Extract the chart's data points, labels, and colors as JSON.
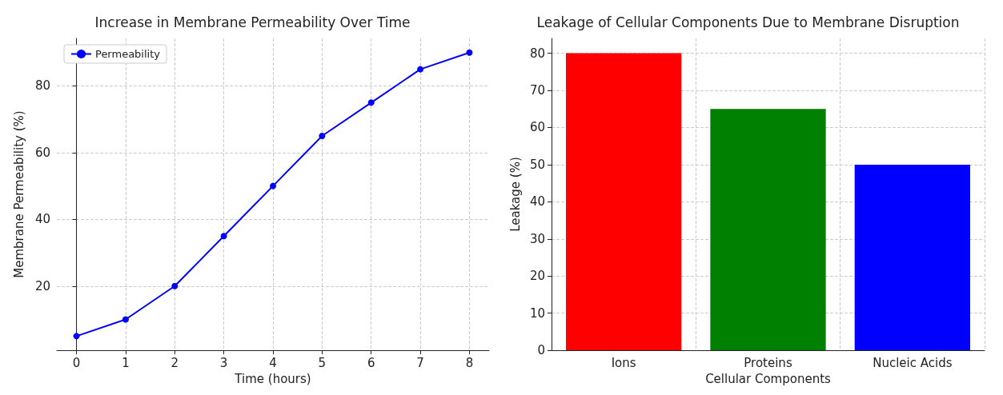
{
  "chart_data": [
    {
      "type": "line",
      "title": "Increase in Membrane Permeability Over Time",
      "xlabel": "Time (hours)",
      "ylabel": "Membrane Permeability (%)",
      "x": [
        0,
        1,
        2,
        3,
        4,
        5,
        6,
        7,
        8
      ],
      "series": [
        {
          "name": "Permeability",
          "color": "#0000ff",
          "values": [
            5,
            10,
            20,
            35,
            50,
            65,
            75,
            85,
            90
          ]
        }
      ],
      "xlim": [
        -0.4,
        8.4
      ],
      "xticks": [
        0,
        1,
        2,
        3,
        4,
        5,
        6,
        7,
        8
      ],
      "ylim": [
        0.75,
        94.25
      ],
      "yticks": [
        20,
        40,
        60,
        80
      ],
      "grid": true,
      "legend": "top left",
      "marker": "circle",
      "line_style": "solid"
    },
    {
      "type": "bar",
      "title": "Leakage of Cellular Components Due to Membrane Disruption",
      "xlabel": "Cellular Components",
      "ylabel": "Leakage (%)",
      "categories": [
        "Ions",
        "Proteins",
        "Nucleic Acids"
      ],
      "values": [
        80,
        65,
        50
      ],
      "colors": [
        "#ff0000",
        "#008000",
        "#0000ff"
      ],
      "ylim": [
        0,
        84
      ],
      "yticks": [
        0,
        10,
        20,
        30,
        40,
        50,
        60,
        70,
        80
      ],
      "grid": true
    }
  ]
}
